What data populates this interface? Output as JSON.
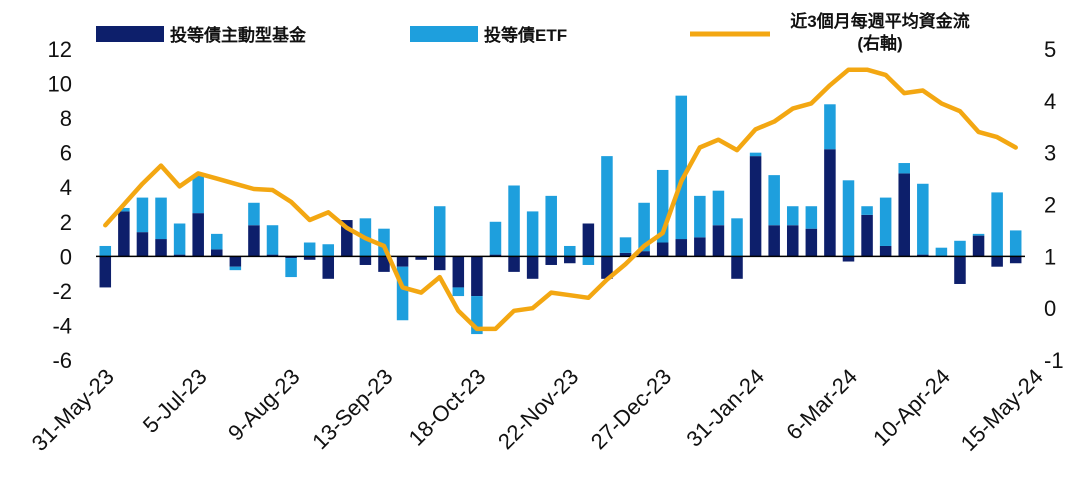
{
  "chart_data": {
    "type": "bar",
    "title": "",
    "legend": {
      "placement": "top",
      "active_fund": "投等債主動型基金",
      "etf": "投等債ETF",
      "rolling_avg_line1": "近3個月每週平均資金流",
      "rolling_avg_line2": "(右軸)"
    },
    "colors": {
      "active_fund": "#0d1f6b",
      "etf": "#1e9fdd",
      "rolling_avg": "#f3a712",
      "zero_line": "#000000"
    },
    "left_axis": {
      "ylim": [
        -6,
        12
      ],
      "ticks": [
        12,
        10,
        8,
        6,
        4,
        2,
        0,
        -2,
        -4,
        -6
      ],
      "tick_labels": [
        "12",
        "10",
        "8",
        "6",
        "4",
        "2",
        "0",
        "-2",
        "-4",
        "-6"
      ]
    },
    "right_axis": {
      "ylim": [
        -1,
        5
      ],
      "ticks": [
        5,
        4,
        3,
        2,
        1,
        0,
        -1
      ],
      "tick_labels": [
        "5",
        "4",
        "3",
        "2",
        "1",
        "0",
        "-1"
      ]
    },
    "x_tick_labels": [
      "31-May-23",
      "5-Jul-23",
      "9-Aug-23",
      "13-Sep-23",
      "18-Oct-23",
      "22-Nov-23",
      "27-Dec-23",
      "31-Jan-24",
      "6-Mar-24",
      "10-Apr-24",
      "15-May-24"
    ],
    "x_tick_every": 5,
    "series": [
      {
        "name": "投等債主動型基金",
        "kind": "stacked-bar",
        "values": [
          -1.8,
          2.6,
          1.4,
          1.0,
          0.1,
          2.5,
          0.4,
          -0.6,
          1.8,
          0.1,
          -0.1,
          -0.2,
          -1.3,
          2.1,
          -0.5,
          -0.9,
          -0.6,
          -0.2,
          -0.8,
          -1.8,
          -2.3,
          0.1,
          -0.9,
          -1.3,
          -0.5,
          -0.4,
          1.9,
          -1.3,
          0.2,
          0.3,
          0.8,
          1.0,
          1.1,
          1.8,
          -1.3,
          5.8,
          1.8,
          1.8,
          1.6,
          6.2,
          -0.3,
          2.4,
          0.6,
          4.8,
          0.1,
          0.0,
          -1.6,
          1.2,
          -0.6,
          -0.4
        ]
      },
      {
        "name": "投等債ETF",
        "kind": "stacked-bar",
        "values": [
          0.6,
          0.2,
          2.0,
          2.4,
          1.8,
          2.2,
          0.9,
          -0.2,
          1.3,
          1.7,
          -1.1,
          0.8,
          0.7,
          0.0,
          2.2,
          1.6,
          -3.1,
          0.0,
          2.9,
          -0.5,
          -2.2,
          1.9,
          4.1,
          2.6,
          3.5,
          0.6,
          -0.5,
          5.8,
          0.9,
          2.8,
          4.2,
          8.3,
          2.4,
          2.0,
          2.2,
          0.2,
          2.9,
          1.1,
          1.3,
          2.6,
          4.4,
          0.5,
          2.8,
          0.6,
          4.1,
          0.5,
          0.9,
          0.1,
          3.7,
          1.5
        ]
      },
      {
        "name": "近3個月每週平均資金流",
        "kind": "line",
        "axis": "right",
        "values": [
          1.6,
          2.0,
          2.4,
          2.75,
          2.35,
          2.6,
          2.5,
          2.4,
          2.3,
          2.28,
          2.05,
          1.7,
          1.85,
          1.55,
          1.35,
          1.2,
          0.4,
          0.3,
          0.6,
          -0.05,
          -0.4,
          -0.4,
          -0.05,
          0.0,
          0.3,
          0.25,
          0.2,
          0.55,
          0.85,
          1.2,
          1.45,
          2.45,
          3.1,
          3.25,
          3.05,
          3.45,
          3.6,
          3.85,
          3.95,
          4.3,
          4.6,
          4.6,
          4.5,
          4.15,
          4.2,
          3.95,
          3.8,
          3.4,
          3.3,
          3.1
        ]
      }
    ]
  }
}
